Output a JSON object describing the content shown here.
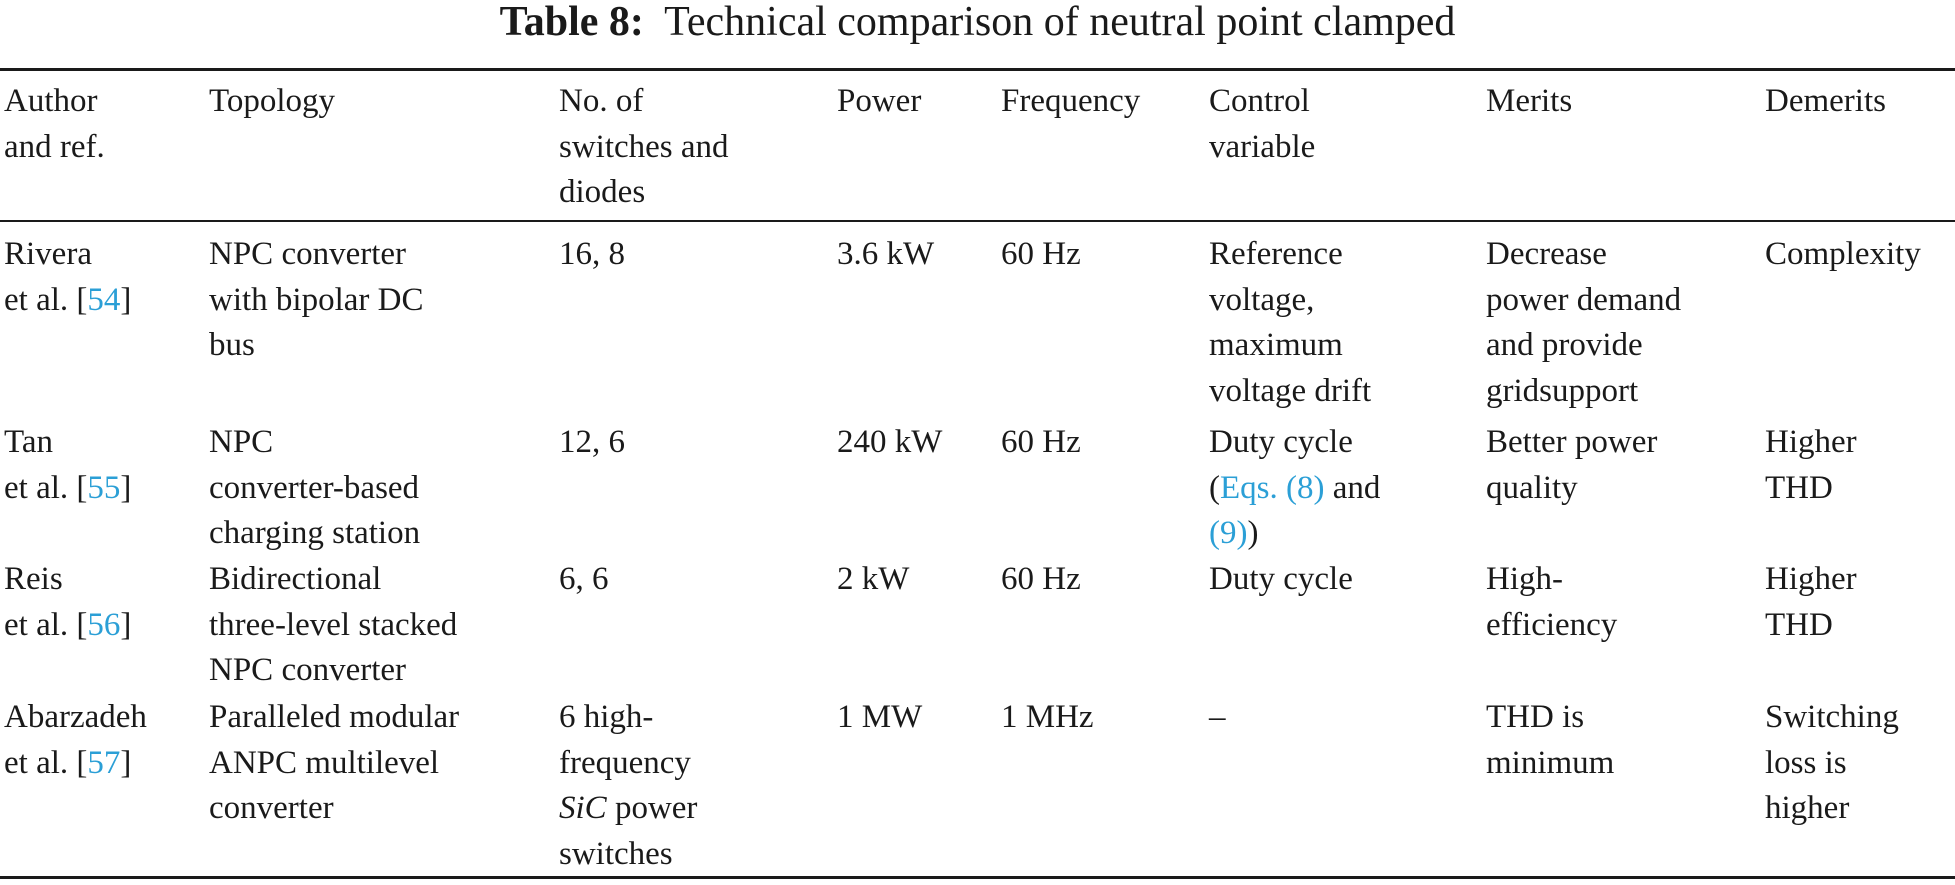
{
  "caption": {
    "label": "Table 8:",
    "title": "Technical comparison of neutral point clamped"
  },
  "headers": [
    [
      "Author",
      "and ref."
    ],
    [
      "Topology"
    ],
    [
      "No. of",
      "switches and",
      "diodes"
    ],
    [
      "Power"
    ],
    [
      "Frequency"
    ],
    [
      "Control",
      "variable"
    ],
    [
      "Merits"
    ],
    [
      "Demerits"
    ]
  ],
  "rows": [
    {
      "author": [
        "Rivera",
        "et al. [",
        "54",
        "]"
      ],
      "topology": [
        "NPC converter",
        "with bipolar DC",
        "bus"
      ],
      "switches": [
        "16, 8"
      ],
      "power": "3.6 kW",
      "frequency": "60 Hz",
      "control": [
        "Reference",
        "voltage,",
        "maximum",
        "voltage drift"
      ],
      "merits": [
        "Decrease",
        "power demand",
        "and provide",
        "gridsupport"
      ],
      "demerits": [
        "Complexity"
      ]
    },
    {
      "author": [
        "Tan",
        "et al. [",
        "55",
        "]"
      ],
      "topology": [
        "NPC",
        "converter-based",
        "charging station"
      ],
      "switches": [
        "12, 6"
      ],
      "power": "240 kW",
      "frequency": "60 Hz",
      "control": [
        "Duty cycle",
        "(",
        "Eqs. (8)",
        " and",
        "(9)",
        ")"
      ],
      "merits": [
        "Better power",
        "quality"
      ],
      "demerits": [
        "Higher",
        "THD"
      ]
    },
    {
      "author": [
        "Reis",
        "et al. [",
        "56",
        "]"
      ],
      "topology": [
        "Bidirectional",
        "three-level stacked",
        "NPC converter"
      ],
      "switches": [
        "6, 6"
      ],
      "power": "2 kW",
      "frequency": "60 Hz",
      "control": [
        "Duty cycle"
      ],
      "merits": [
        "High-",
        "efficiency"
      ],
      "demerits": [
        "Higher",
        "THD"
      ]
    },
    {
      "author": [
        "Abarzadeh",
        "et al. [",
        "57",
        "]"
      ],
      "topology": [
        "Paralleled modular",
        "ANPC multilevel",
        "converter"
      ],
      "switches": [
        "6 high-",
        "frequency",
        "SiC",
        " power",
        "switches"
      ],
      "power": "1 MW",
      "frequency": "1 MHz",
      "control": [
        "–"
      ],
      "merits": [
        "THD is",
        "minimum"
      ],
      "demerits": [
        "Switching",
        "loss is",
        "higher"
      ]
    }
  ],
  "colors": {
    "link": "#2b9fd6",
    "text": "#1a1a1a"
  }
}
